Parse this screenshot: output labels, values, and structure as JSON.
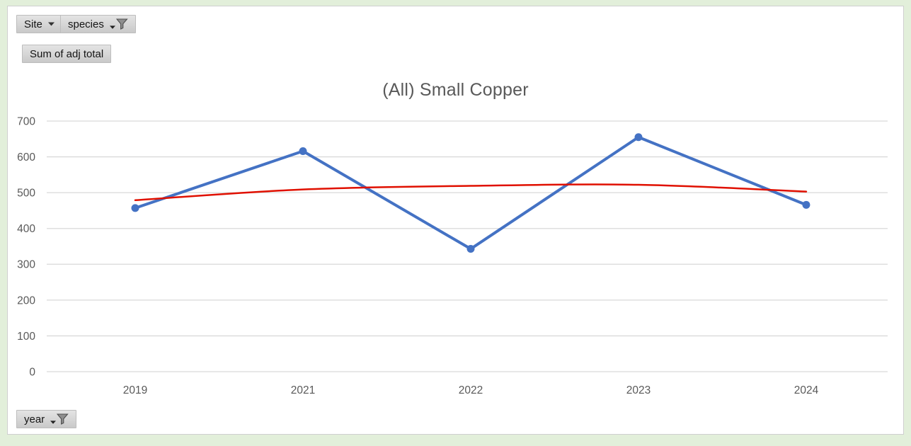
{
  "filters": {
    "site": {
      "label": "Site",
      "state": "dropdown"
    },
    "species": {
      "label": "species",
      "state": "filtered"
    },
    "value_button": {
      "label": "Sum of adj total"
    },
    "year": {
      "label": "year",
      "state": "filtered"
    }
  },
  "chart_data": {
    "type": "line",
    "title": "(All) Small Copper",
    "categories": [
      "2019",
      "2021",
      "2022",
      "2023",
      "2024"
    ],
    "series": [
      {
        "name": "Sum of adj total",
        "values": [
          457,
          616,
          343,
          655,
          466
        ],
        "color": "#4472C4",
        "markers": true,
        "smooth": false,
        "width": 4
      },
      {
        "name": "trendline",
        "values": [
          479,
          509,
          519,
          522,
          503
        ],
        "color": "#e01000",
        "markers": false,
        "smooth": true,
        "width": 2.5
      }
    ],
    "ylim": [
      0,
      700
    ],
    "ytick_step": 100,
    "grid": true,
    "legend": "none"
  },
  "colors": {
    "sheet_background": "#e2efda",
    "plot_background": "#ffffff",
    "gridline": "#d9d9d9",
    "axis_text": "#595959",
    "title_text": "#595959",
    "series_blue": "#4472C4",
    "trend_red": "#e01000"
  }
}
